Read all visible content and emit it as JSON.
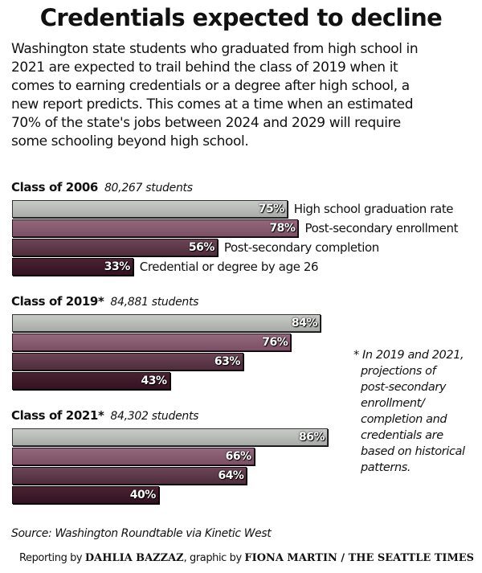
{
  "title": "Credentials expected to decline",
  "intro": "Washington state students who graduated from high school in 2021 are expected to trail behind the class of 2019 when it comes to earning credentials or a degree after high school, a new report predicts. This comes at a time when an estimated 70% of the state's jobs between 2024 and 2029 will require some schooling beyond high school.",
  "intro_lines": [
    "Washington state students who graduated from high school in",
    "2021 are expected to trail behind the class of 2019 when it",
    "comes to earning credentials or a degree after high school, a",
    "new report predicts. This comes at a time when an estimated",
    "70% of the state's jobs between 2024 and 2029 will require",
    "some schooling beyond high school."
  ],
  "chart_data": {
    "type": "bar",
    "orientation": "horizontal",
    "title": "Credentials expected to decline",
    "xlabel": "",
    "ylabel": "",
    "xlim": [
      0,
      100
    ],
    "unit": "%",
    "grid": false,
    "categories": [
      "High school graduation rate",
      "Post-secondary enrollment",
      "Post-secondary completion",
      "Credential or degree by age 26"
    ],
    "groups": [
      {
        "name": "Class of 2006",
        "students": "80,267 students",
        "values": [
          75,
          78,
          56,
          33
        ],
        "labels": [
          "75%",
          "78%",
          "56%",
          "33%"
        ]
      },
      {
        "name": "Class of 2019*",
        "students": "84,881 students",
        "values": [
          84,
          76,
          63,
          43
        ],
        "labels": [
          "84%",
          "76%",
          "63%",
          "43%"
        ]
      },
      {
        "name": "Class of 2021*",
        "students": "84,302 students",
        "values": [
          86,
          66,
          64,
          40
        ],
        "labels": [
          "86%",
          "66%",
          "64%",
          "40%"
        ]
      }
    ],
    "series_colors": [
      "#b9bbb8",
      "#875b70",
      "#5d3949",
      "#3e1a2a"
    ],
    "annotations": [
      "* In 2019 and 2021, projections of post-secondary enrollment/ completion and credentials are based on historical patterns."
    ]
  },
  "footnote": {
    "lines": [
      "* In 2019 and 2021,",
      "projections of",
      "post-secondary",
      "enrollment/",
      "completion and",
      "credentials are",
      "based on historical",
      "patterns."
    ]
  },
  "source": "Source: Washington Roundtable via Kinetic West",
  "credit": {
    "prefix": "Reporting by ",
    "reporter": "DAHLIA BAZZAZ",
    "middle": ", graphic by ",
    "artist": "FIONA MARTIN / THE SEATTLE TIMES"
  }
}
